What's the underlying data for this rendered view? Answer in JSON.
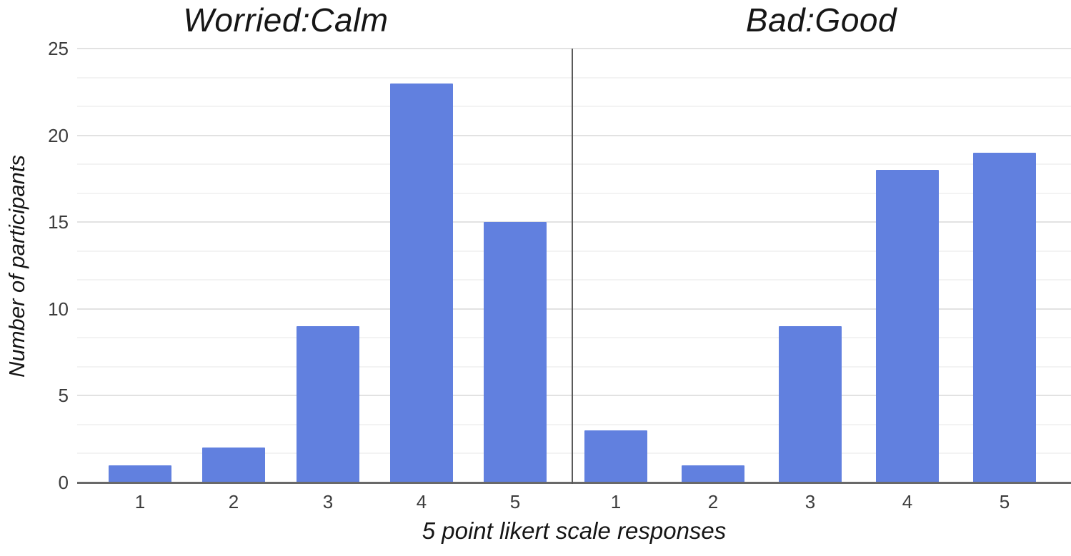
{
  "figure": {
    "y_axis": {
      "title": "Number of participants",
      "tick_labels": [
        "0",
        "5",
        "10",
        "15",
        "20",
        "25"
      ],
      "range": [
        0,
        25
      ]
    },
    "x_axis": {
      "title": "5 point likert scale responses"
    }
  },
  "colors": {
    "bar": "#6180df",
    "gridline_major": "#e2e2e2",
    "gridline_minor": "#f3f3f3",
    "axis_line": "#696969",
    "divider": "#5a5a5a"
  },
  "chart_data": [
    {
      "type": "bar",
      "title": "Worried:Calm",
      "categories": [
        "1",
        "2",
        "3",
        "4",
        "5"
      ],
      "values": [
        1,
        2,
        9,
        23,
        15
      ],
      "xlabel": "5 point likert scale responses",
      "ylabel": "Number of participants",
      "ylim": [
        0,
        25
      ],
      "yticks": [
        0,
        5,
        10,
        15,
        20,
        25
      ],
      "minor_gridlines_per_major": 2,
      "grid": "on",
      "legend": "none"
    },
    {
      "type": "bar",
      "title": "Bad:Good",
      "categories": [
        "1",
        "2",
        "3",
        "4",
        "5"
      ],
      "values": [
        3,
        1,
        9,
        18,
        19
      ],
      "xlabel": "5 point likert scale responses",
      "ylabel": "Number of participants",
      "ylim": [
        0,
        25
      ],
      "yticks": [
        0,
        5,
        10,
        15,
        20,
        25
      ],
      "minor_gridlines_per_major": 2,
      "grid": "on",
      "legend": "none"
    }
  ]
}
